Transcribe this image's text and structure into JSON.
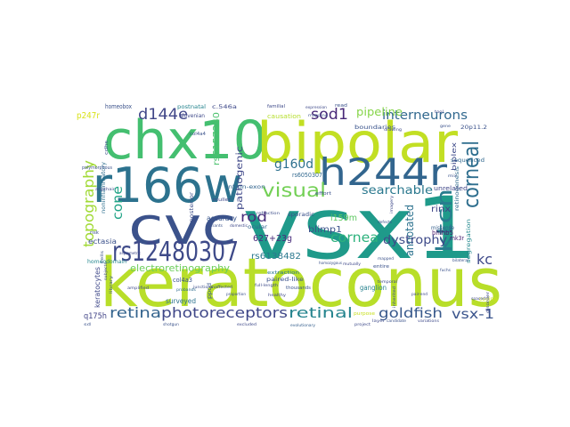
{
  "words": [
    {
      "text": "keratoconus",
      "color": "#b8de29"
    },
    {
      "text": "vsx1",
      "color": "#1f9a8a"
    },
    {
      "text": "chx10",
      "color": "#44bf70"
    },
    {
      "text": "bipolar",
      "color": "#c2df23"
    },
    {
      "text": "r166w",
      "color": "#2c728e"
    },
    {
      "text": "cvc",
      "color": "#3b528b"
    },
    {
      "text": "h244r",
      "color": "#32658e"
    },
    {
      "text": "rs12480307",
      "color": "#3e4a89"
    },
    {
      "text": "visual",
      "color": "#73d055"
    },
    {
      "text": "corneal",
      "color": "#2e6e8e"
    },
    {
      "text": "ktcn",
      "color": "#287c8e"
    },
    {
      "text": "retina",
      "color": "#33638d"
    },
    {
      "text": "photoreceptors",
      "color": "#3f4788"
    },
    {
      "text": "retinal",
      "color": "#25848e"
    },
    {
      "text": "goldfish",
      "color": "#38598c"
    },
    {
      "text": "vsx-1",
      "color": "#3a548c"
    },
    {
      "text": "topography",
      "color": "#a2da37"
    },
    {
      "text": "d144e",
      "color": "#404688"
    },
    {
      "text": "sod1",
      "color": "#482878"
    },
    {
      "text": "interneurons",
      "color": "#31688e"
    },
    {
      "text": "g160d",
      "color": "#2d708e"
    },
    {
      "text": "cone",
      "color": "#20a386"
    },
    {
      "text": "rod",
      "color": "#472d7b"
    },
    {
      "text": "cornea",
      "color": "#2db27d"
    },
    {
      "text": "kc",
      "color": "#3e4989"
    },
    {
      "text": "searchable",
      "color": "#2a788e"
    },
    {
      "text": "dystrophy",
      "color": "#3e4a89"
    },
    {
      "text": "pipeline",
      "color": "#86d549"
    },
    {
      "text": "electroretinography",
      "color": "#6ccd5a"
    },
    {
      "text": "pathogenic",
      "color": "#3f4889"
    },
    {
      "text": "annotated",
      "color": "#2c728e"
    },
    {
      "text": "rs6138482",
      "color": "#2a788e"
    },
    {
      "text": "rs6157240",
      "color": "#4ac16d"
    },
    {
      "text": "627+23g",
      "color": "#472a7a"
    },
    {
      "text": "blimp1",
      "color": "#3b528b"
    },
    {
      "text": "rinx",
      "color": "#404688"
    },
    {
      "text": "i159m",
      "color": "#5ec962"
    },
    {
      "text": "p247r",
      "color": "#d8e219"
    },
    {
      "text": "q175h",
      "color": "#414487"
    },
    {
      "text": "surveyed",
      "color": "#2c728e"
    },
    {
      "text": "ganglion",
      "color": "#26828e"
    },
    {
      "text": "col4a3",
      "color": "#3a538b"
    },
    {
      "text": "bhlhb5",
      "color": "#481769"
    },
    {
      "text": "mk3r",
      "color": "#482173"
    },
    {
      "text": "ectasia",
      "color": "#3b518b"
    },
    {
      "text": "rs6050307",
      "color": "#31688e"
    },
    {
      "text": "accuracy",
      "color": "#39568c"
    },
    {
      "text": "keratocytes",
      "color": "#3f4889"
    },
    {
      "text": "homeodomain",
      "color": "#24868e"
    },
    {
      "text": "homeobox",
      "color": "#3b528b"
    },
    {
      "text": "postnatal",
      "color": "#25848e"
    },
    {
      "text": "c.546a",
      "color": "#3e4989"
    },
    {
      "text": "retinogenesis",
      "color": "#2f6c8e"
    },
    {
      "text": "unrelated",
      "color": "#3f4788"
    },
    {
      "text": "sequenced",
      "color": "#31688e"
    },
    {
      "text": "biplex",
      "color": "#3e4a89"
    },
    {
      "text": "20p11.2",
      "color": "#3b528b"
    },
    {
      "text": "boundaries",
      "color": "#3a548c"
    },
    {
      "text": "causation",
      "color": "#b5de2b"
    },
    {
      "text": "sporadic",
      "color": "#3b528b"
    },
    {
      "text": "intron-exon",
      "color": "#32648e"
    },
    {
      "text": "posterior",
      "color": "#3d4e8a"
    },
    {
      "text": "noninflammatory",
      "color": "#2e6f8e"
    },
    {
      "text": "paired-like",
      "color": "#3b528b"
    },
    {
      "text": "healthy",
      "color": "#3f4889"
    },
    {
      "text": "thousands",
      "color": "#3a548c"
    },
    {
      "text": "missense",
      "color": "#355f8d"
    },
    {
      "text": "segregation",
      "color": "#23898e"
    },
    {
      "text": "coding",
      "color": "#d0e11c"
    },
    {
      "text": "purpose",
      "color": "#c8e020"
    },
    {
      "text": "slovenian",
      "color": "#3e4989"
    },
    {
      "text": "polymorphous",
      "color": "#3b528b"
    },
    {
      "text": "effort",
      "color": "#3b528b"
    },
    {
      "text": "muller",
      "color": "#3e4989"
    },
    {
      "text": "ocular",
      "color": "#32648e"
    },
    {
      "text": "project",
      "color": "#3e4a89"
    },
    {
      "text": "proportion",
      "color": "#3b528b"
    },
    {
      "text": "junctions",
      "color": "#3d4e8a"
    },
    {
      "text": "unaffected",
      "color": "#3e4a89"
    },
    {
      "text": "shotgun",
      "color": "#3b528b"
    },
    {
      "text": "excluded",
      "color": "#3e4989"
    },
    {
      "text": "evolutionary",
      "color": "#355f8d"
    },
    {
      "text": "candidate",
      "color": "#3b528b"
    },
    {
      "text": "variations",
      "color": "#3e4989"
    },
    {
      "text": "mutually",
      "color": "#3f4889"
    },
    {
      "text": "homozygous",
      "color": "#3b528b"
    },
    {
      "text": "amplified",
      "color": "#3e4a89"
    },
    {
      "text": "extraction",
      "color": "#2a788e"
    },
    {
      "text": "ppcd",
      "color": "#39568c"
    },
    {
      "text": "probands",
      "color": "#2f6c8e"
    },
    {
      "text": "cdhs",
      "color": "#3b528b"
    },
    {
      "text": "refraction",
      "color": "#3d4e8a"
    },
    {
      "text": "variants",
      "color": "#3b528b"
    },
    {
      "text": "domestic",
      "color": "#3e4989"
    },
    {
      "text": "col4a4",
      "color": "#3b528b"
    },
    {
      "text": "familial",
      "color": "#3e4a89"
    },
    {
      "text": "mapping",
      "color": "#3b528b"
    },
    {
      "text": "expression",
      "color": "#3e4989"
    },
    {
      "text": "read",
      "color": "#3b528b"
    },
    {
      "text": "drawing",
      "color": "#3e4a89"
    },
    {
      "text": "gene",
      "color": "#3b528b"
    },
    {
      "text": "tool",
      "color": "#3e4989"
    },
    {
      "text": "entire",
      "color": "#3b528b"
    },
    {
      "text": "temporal",
      "color": "#3e4a89"
    },
    {
      "text": "library",
      "color": "#3b528b"
    },
    {
      "text": "asymmetric",
      "color": "#3e4989"
    },
    {
      "text": "mapped",
      "color": "#3b528b"
    },
    {
      "text": "pair-end",
      "color": "#3e4a89"
    },
    {
      "text": "bilateral",
      "color": "#3b528b"
    },
    {
      "text": "disorder",
      "color": "#3e4989"
    },
    {
      "text": "fuchs",
      "color": "#3b528b"
    },
    {
      "text": "spaced",
      "color": "#3e4a89"
    },
    {
      "text": "defects",
      "color": "#3b528b"
    },
    {
      "text": "argithair",
      "color": "#3e4989"
    },
    {
      "text": "risk",
      "color": "#3b528b"
    },
    {
      "text": "subjects",
      "color": "#3e4a89"
    },
    {
      "text": "cells",
      "color": "#3b528b"
    },
    {
      "text": "layer",
      "color": "#3e4989"
    },
    {
      "text": "inherited",
      "color": "#3b528b"
    },
    {
      "text": "full-length",
      "color": "#3e4a89"
    },
    {
      "text": "mix",
      "color": "#3b528b"
    },
    {
      "text": "imagery",
      "color": "#3e4989"
    },
    {
      "text": "sd",
      "color": "#3b528b"
    }
  ]
}
